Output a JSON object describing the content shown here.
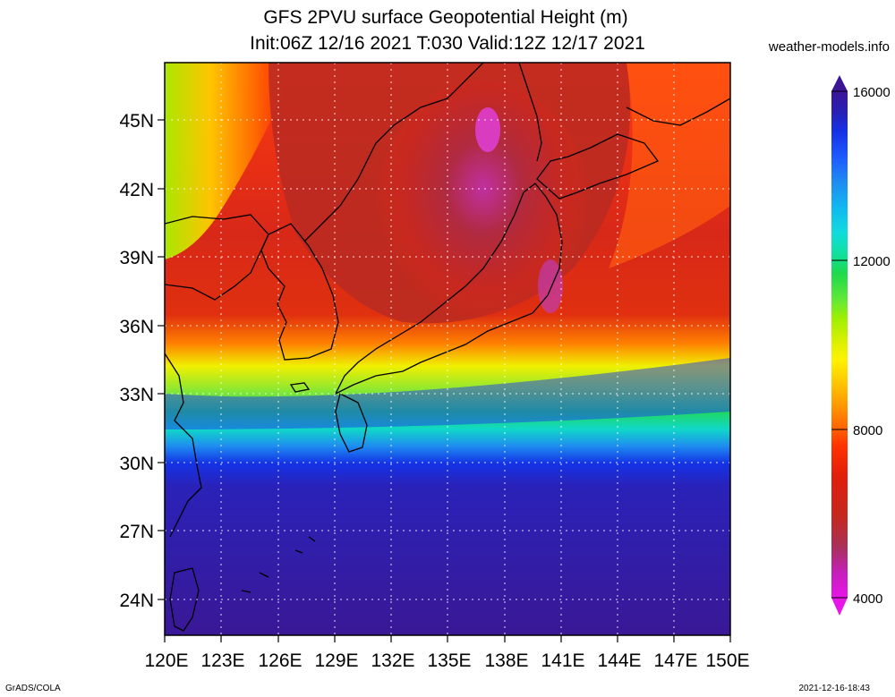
{
  "header": {
    "title": "GFS 2PVU surface Geopotential Height (m)",
    "subtitle": "Init:06Z 12/16 2021 T:030 Valid:12Z 12/17 2021",
    "site": "weather-models.info"
  },
  "map": {
    "region": "Japan / Korea / East China Sea",
    "lat_labels": [
      "45N",
      "42N",
      "39N",
      "36N",
      "33N",
      "30N",
      "27N",
      "24N"
    ],
    "lon_labels": [
      "120E",
      "123E",
      "126E",
      "129E",
      "132E",
      "135E",
      "138E",
      "141E",
      "144E",
      "147E",
      "150E"
    ],
    "lat_range": [
      22.5,
      47.5
    ],
    "lon_range": [
      120,
      150
    ],
    "gridlines": "dotted"
  },
  "colorbar": {
    "labels": [
      "16000",
      "12000",
      "8000",
      "4000"
    ],
    "min": 4000,
    "max": 16000,
    "colors": [
      "#e815e8",
      "#c41fb8",
      "#a8305a",
      "#c4281e",
      "#e01e0a",
      "#ff3300",
      "#ff6a00",
      "#ff9900",
      "#ffcc00",
      "#fff200",
      "#d4f000",
      "#a0f000",
      "#60e838",
      "#1ed94c",
      "#10e0a0",
      "#10dcdc",
      "#10b8f0",
      "#1e8cf0",
      "#1e5aff",
      "#1432e6",
      "#2820b4",
      "#3c1496"
    ]
  },
  "footer": {
    "left": "GrADS/COLA",
    "right": "2021-12-16-18:43"
  }
}
